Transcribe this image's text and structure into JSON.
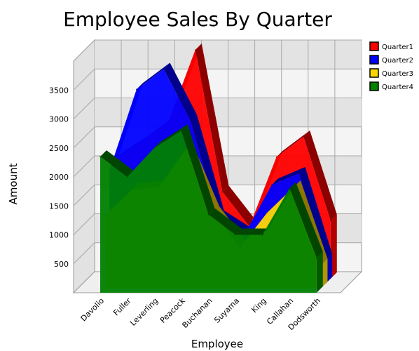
{
  "chart_data": {
    "type": "area",
    "title": "Employee Sales By Quarter",
    "xlabel": "Employee",
    "ylabel": "Amount",
    "categories": [
      "Davolio",
      "Fuller",
      "Leverling",
      "Peacock",
      "Buchanan",
      "Suyama",
      "King",
      "Callahan",
      "Dodsworth"
    ],
    "yticks": [
      500,
      1000,
      1500,
      2000,
      2500,
      3000,
      3500
    ],
    "ylim": [
      0,
      4000
    ],
    "grid": true,
    "three_d": true,
    "legend_position": "right",
    "series": [
      {
        "name": "Quarter1",
        "color": "#FF0000",
        "values": [
          2050,
          2350,
          2700,
          3950,
          1500,
          900,
          2100,
          2450,
          1000
        ]
      },
      {
        "name": "Quarter2",
        "color": "#0000FF",
        "values": [
          1950,
          3350,
          3700,
          2800,
          1150,
          850,
          1700,
          1900,
          400
        ]
      },
      {
        "name": "Quarter3",
        "color": "#FFD700",
        "values": [
          1250,
          1700,
          1750,
          2400,
          1300,
          700,
          1300,
          1750,
          400
        ]
      },
      {
        "name": "Quarter4",
        "color": "#008000",
        "values": [
          2350,
          2000,
          2500,
          2800,
          1350,
          1000,
          1000,
          1800,
          600
        ]
      }
    ]
  }
}
